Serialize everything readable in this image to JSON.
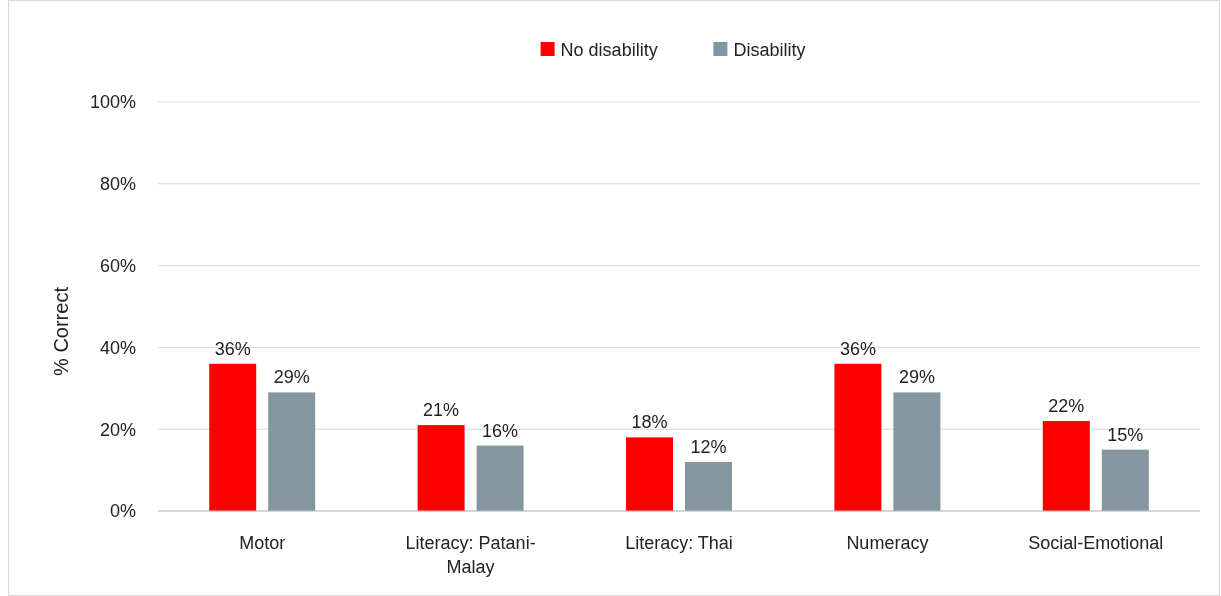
{
  "chart_data": {
    "type": "bar",
    "ylabel": "% Correct",
    "categories": [
      "Motor",
      "Literacy: Patani-Malay",
      "Literacy: Thai",
      "Numeracy",
      "Social-Emotional"
    ],
    "series": [
      {
        "name": "No disability",
        "color": "#ff0000",
        "values": [
          36,
          21,
          18,
          36,
          22
        ],
        "value_labels": [
          "36%",
          "21%",
          "18%",
          "36%",
          "22%"
        ]
      },
      {
        "name": "Disability",
        "color": "#8497a0",
        "values": [
          29,
          16,
          12,
          29,
          15
        ],
        "value_labels": [
          "29%",
          "16%",
          "12%",
          "29%",
          "15%"
        ]
      }
    ],
    "ylim": [
      0,
      100
    ],
    "yticks": [
      {
        "value": 0,
        "label": "0%"
      },
      {
        "value": 20,
        "label": "20%"
      },
      {
        "value": 40,
        "label": "40%"
      },
      {
        "value": 60,
        "label": "60%"
      },
      {
        "value": 80,
        "label": "80%"
      },
      {
        "value": 100,
        "label": "100%"
      }
    ],
    "grid": "y",
    "legend": "top"
  }
}
